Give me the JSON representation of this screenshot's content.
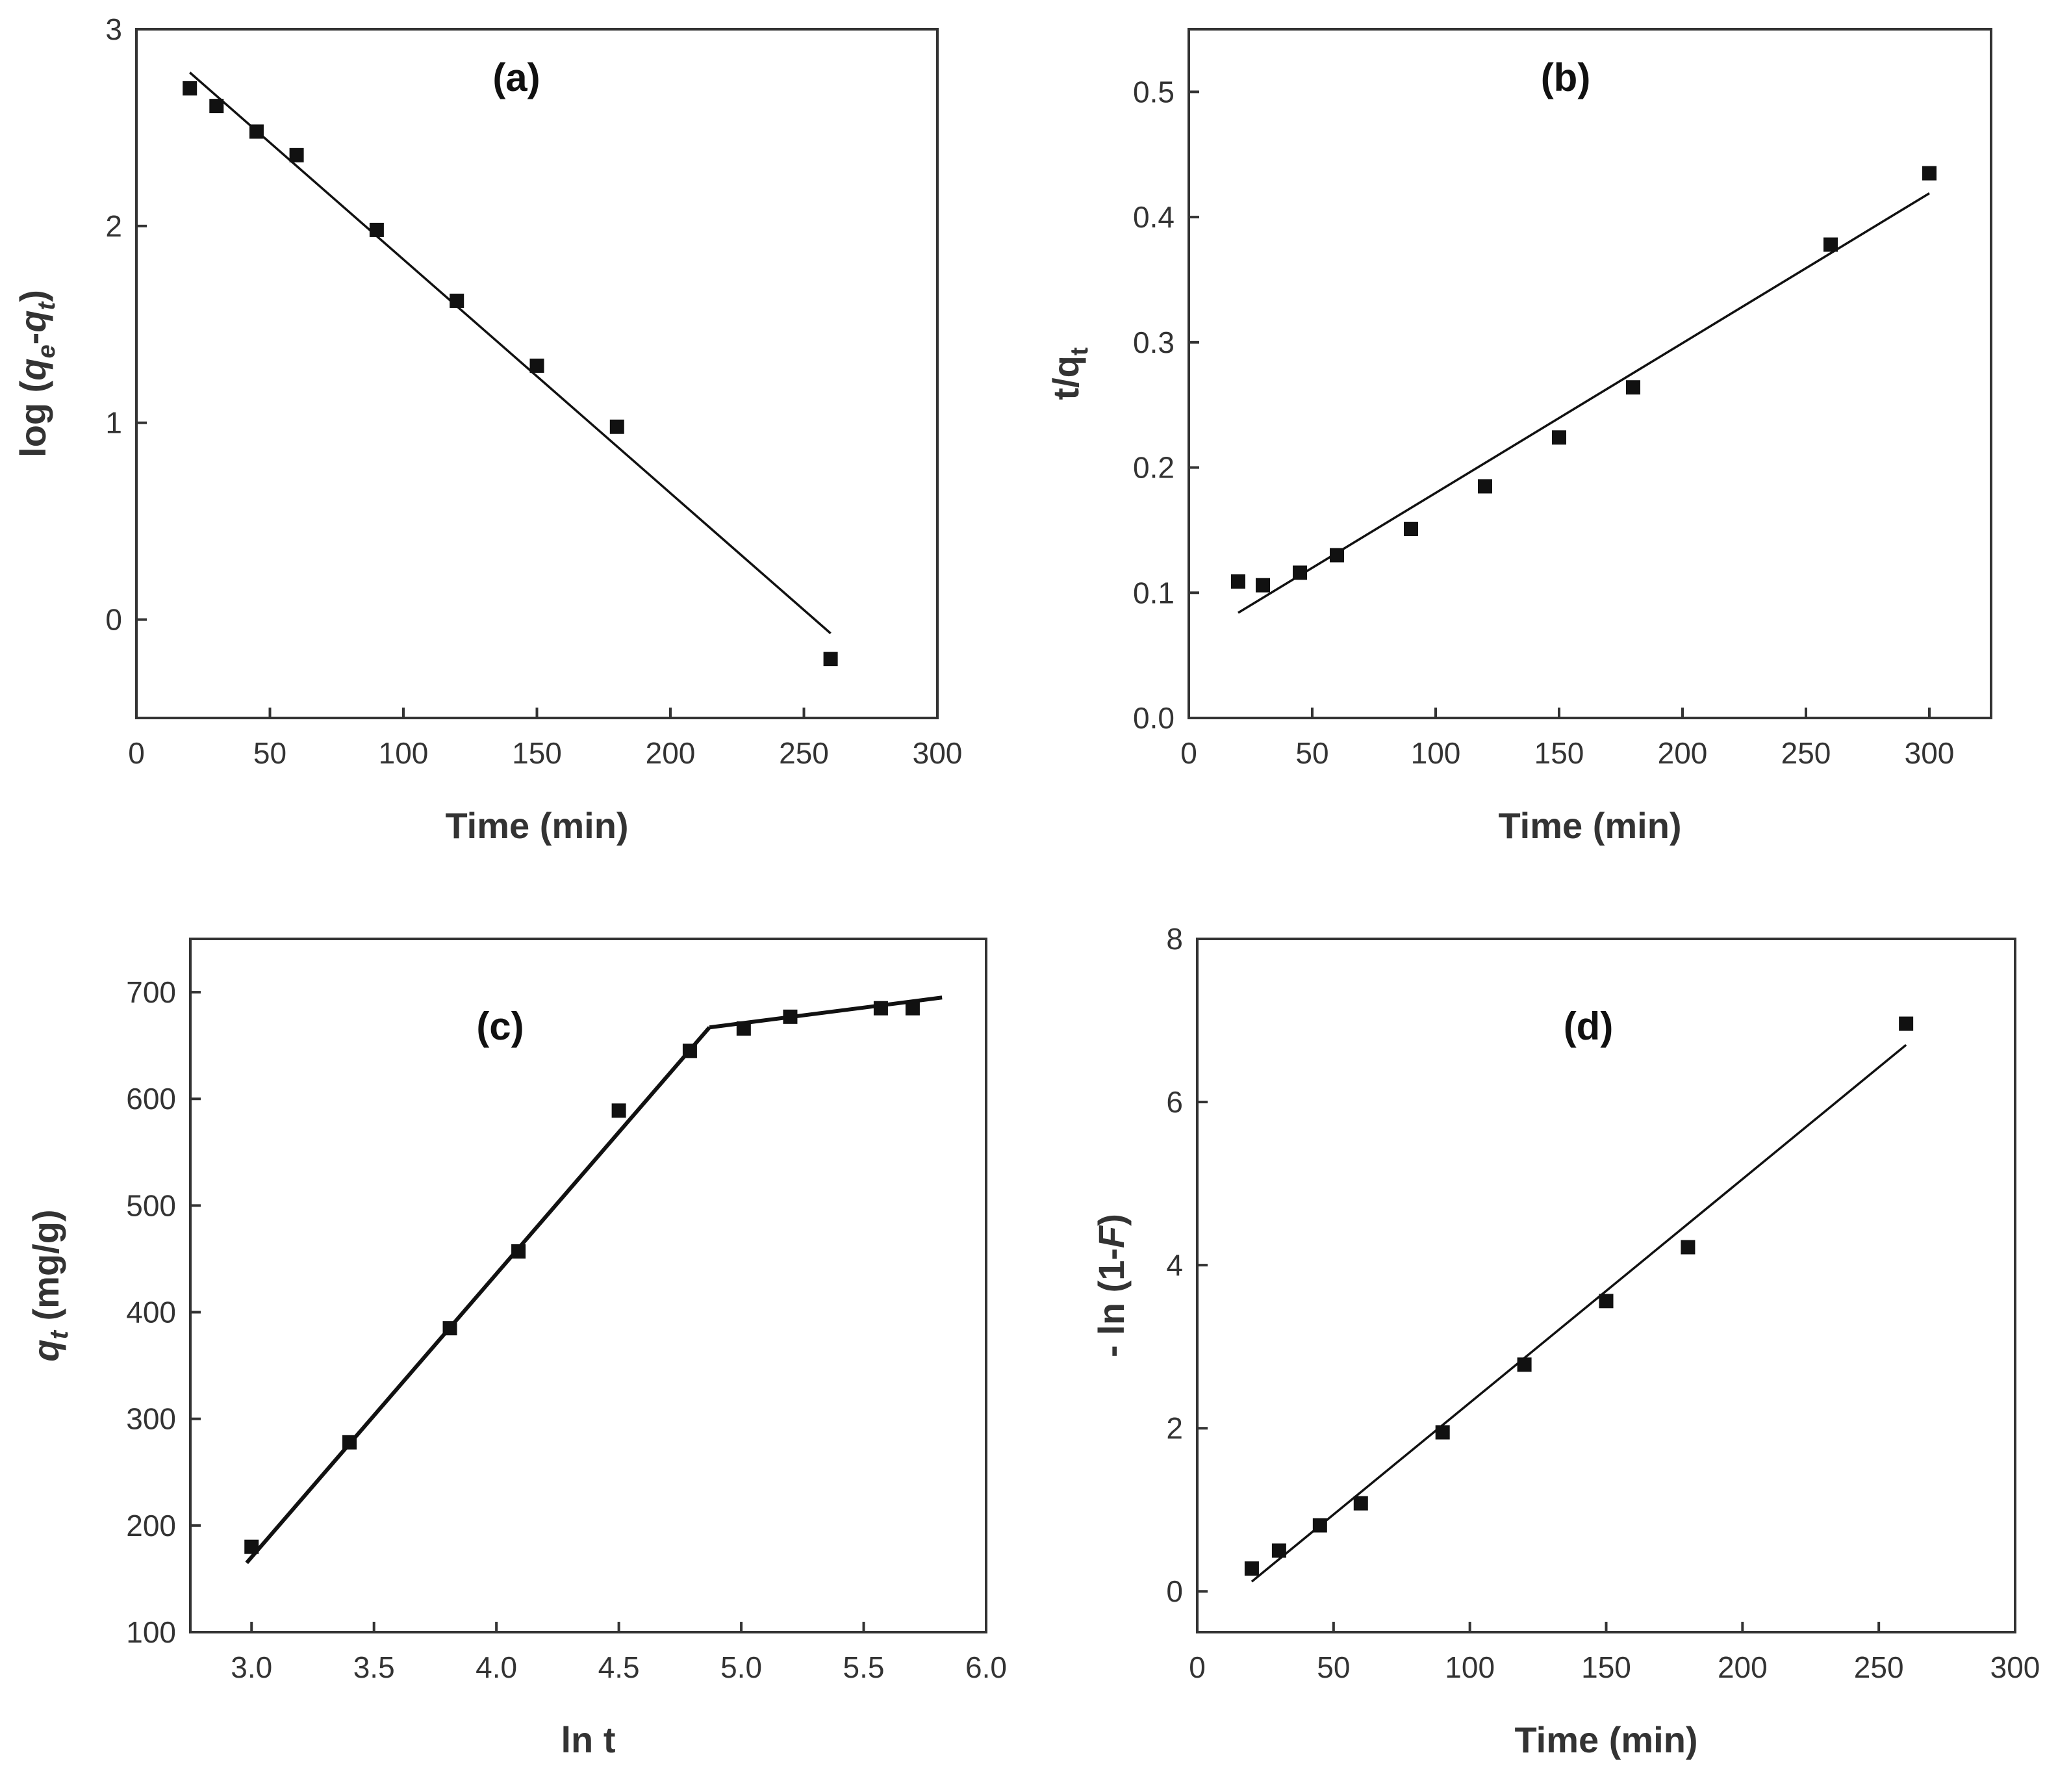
{
  "figure": {
    "colors": {
      "axis": "#333333",
      "marker": "#111111",
      "line": "#111111",
      "background": "#ffffff"
    }
  },
  "chart_data": [
    {
      "id": "a",
      "type": "scatter",
      "title": "(a)",
      "xlabel": "Time (min)",
      "ylabel_parts": [
        "log (",
        "q",
        "e",
        "-",
        "q",
        "t",
        ")"
      ],
      "xlim": [
        0,
        300
      ],
      "ylim": [
        -0.5,
        3
      ],
      "xticks": [
        0,
        50,
        100,
        150,
        200,
        250,
        300
      ],
      "yticks": [
        0,
        1,
        2,
        3
      ],
      "points": {
        "x": [
          20,
          30,
          45,
          60,
          90,
          120,
          150,
          180,
          260
        ],
        "y": [
          2.7,
          2.61,
          2.48,
          2.36,
          1.98,
          1.62,
          1.29,
          0.98,
          -0.2
        ]
      },
      "fit_lines": [
        {
          "x": [
            20,
            260
          ],
          "y": [
            2.78,
            -0.07
          ]
        }
      ]
    },
    {
      "id": "b",
      "type": "scatter",
      "title": "(b)",
      "xlabel": "Time (min)",
      "ylabel_parts": [
        "t/q",
        "t"
      ],
      "xlim": [
        0,
        325
      ],
      "ylim": [
        0,
        0.55
      ],
      "xticks": [
        0,
        50,
        100,
        150,
        200,
        250,
        300
      ],
      "yticks": [
        0.0,
        0.1,
        0.2,
        0.3,
        0.4,
        0.5
      ],
      "ytick_labels": [
        "0.0",
        "0.1",
        "0.2",
        "0.3",
        "0.4",
        "0.5"
      ],
      "points": {
        "x": [
          20,
          30,
          45,
          60,
          90,
          120,
          150,
          180,
          260,
          300
        ],
        "y": [
          0.109,
          0.106,
          0.116,
          0.13,
          0.151,
          0.185,
          0.224,
          0.264,
          0.378,
          0.435
        ]
      },
      "fit_lines": [
        {
          "x": [
            20,
            300
          ],
          "y": [
            0.084,
            0.419
          ]
        }
      ]
    },
    {
      "id": "c",
      "type": "scatter",
      "title": "(c)",
      "xlabel": "ln t",
      "ylabel_parts": [
        "q",
        "t",
        " (mg/g)"
      ],
      "xlim": [
        2.75,
        6.0
      ],
      "ylim": [
        100,
        750
      ],
      "xticks": [
        3.0,
        3.5,
        4.0,
        4.5,
        5.0,
        5.5,
        6.0
      ],
      "xtick_labels": [
        "3.0",
        "3.5",
        "4.0",
        "4.5",
        "5.0",
        "5.5",
        "6.0"
      ],
      "yticks": [
        100,
        200,
        300,
        400,
        500,
        600,
        700
      ],
      "points": {
        "x": [
          3.0,
          3.4,
          3.81,
          4.09,
          4.5,
          4.79,
          5.01,
          5.2,
          5.57,
          5.7
        ],
        "y": [
          180,
          278,
          385,
          457,
          589,
          645,
          666,
          677,
          685,
          685
        ]
      },
      "fit_lines": [
        {
          "x": [
            2.98,
            4.87
          ],
          "y": [
            165,
            667
          ],
          "style": "thick"
        },
        {
          "x": [
            4.87,
            5.82
          ],
          "y": [
            667,
            695
          ],
          "style": "thick"
        }
      ]
    },
    {
      "id": "d",
      "type": "scatter",
      "title": "(d)",
      "xlabel": "Time (min)",
      "ylabel_parts": [
        "- ln (1-",
        "F",
        ")"
      ],
      "xlim": [
        0,
        300
      ],
      "ylim": [
        -0.5,
        8
      ],
      "xticks": [
        0,
        50,
        100,
        150,
        200,
        250,
        300
      ],
      "yticks": [
        0,
        2,
        4,
        6,
        8
      ],
      "points": {
        "x": [
          20,
          30,
          45,
          60,
          90,
          120,
          150,
          180,
          260
        ],
        "y": [
          0.28,
          0.5,
          0.81,
          1.08,
          1.95,
          2.78,
          3.56,
          4.22,
          6.96
        ]
      },
      "fit_lines": [
        {
          "x": [
            20,
            260
          ],
          "y": [
            0.12,
            6.7
          ]
        }
      ]
    }
  ]
}
